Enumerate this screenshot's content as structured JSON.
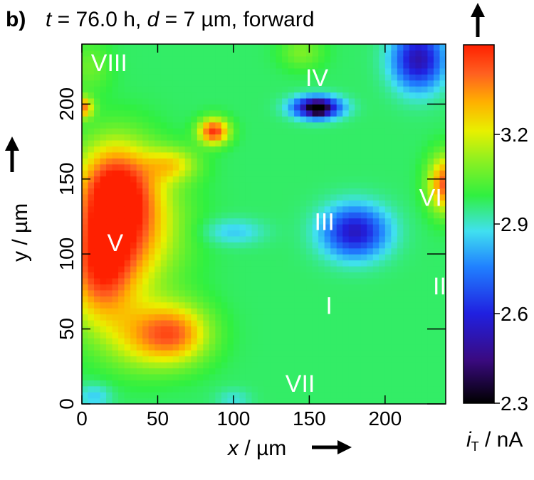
{
  "chart_data": {
    "type": "heatmap",
    "panel_label": "b)",
    "title": {
      "t_symbol": "t",
      "t_value": " = 76.0 h, ",
      "d_symbol": "d",
      "d_value": " = 7 µm, forward"
    },
    "xlabel": {
      "symbol": "x",
      "unit": " / µm"
    },
    "ylabel": "y / µm",
    "colorbar_label": {
      "symbol": "i",
      "subscript": "T",
      "unit": " / nA"
    },
    "x_range": [
      0,
      240
    ],
    "y_range": [
      0,
      240
    ],
    "x_ticks": [
      0,
      50,
      100,
      150,
      200
    ],
    "y_ticks": [
      0,
      50,
      100,
      150,
      200
    ],
    "color_range": [
      2.3,
      3.5
    ],
    "color_ticks": [
      "2.3",
      "2.6",
      "2.9",
      "3.2"
    ],
    "color_tick_values": [
      2.3,
      2.6,
      2.9,
      3.2
    ],
    "colormap": [
      "#000000",
      "#3a0a80",
      "#2020e0",
      "#2080ff",
      "#40e0f0",
      "#30f040",
      "#90f020",
      "#e8f000",
      "#ffb000",
      "#ff6020",
      "#ff2000"
    ],
    "colormap_stops": [
      0.0,
      0.12,
      0.25,
      0.38,
      0.48,
      0.58,
      0.68,
      0.76,
      0.84,
      0.92,
      1.0
    ],
    "background_value": 2.97,
    "features": [
      {
        "name": "V-upper",
        "x": 22,
        "y": 145,
        "sx": 18,
        "sy": 22,
        "amp": 0.45
      },
      {
        "name": "V-main",
        "x": 12,
        "y": 92,
        "sx": 16,
        "sy": 28,
        "amp": 0.45
      },
      {
        "name": "V-mid",
        "x": 35,
        "y": 115,
        "sx": 22,
        "sy": 28,
        "amp": 0.3
      },
      {
        "name": "lower-blob",
        "x": 62,
        "y": 47,
        "sx": 16,
        "sy": 14,
        "amp": 0.38
      },
      {
        "name": "lower-blob-left",
        "x": 38,
        "y": 45,
        "sx": 16,
        "sy": 16,
        "amp": 0.2
      },
      {
        "name": "bridge-1",
        "x": 60,
        "y": 160,
        "sx": 12,
        "sy": 8,
        "amp": 0.22
      },
      {
        "name": "top-spot",
        "x": 87,
        "y": 182,
        "sx": 7,
        "sy": 6,
        "amp": 0.5
      },
      {
        "name": "VI",
        "x": 240,
        "y": 147,
        "sx": 8,
        "sy": 13,
        "amp": 0.45
      },
      {
        "name": "VIII-edge",
        "x": 0,
        "y": 198,
        "sx": 5,
        "sy": 5,
        "amp": 0.4
      },
      {
        "name": "IV",
        "x": 155,
        "y": 198,
        "sx": 11,
        "sy": 5,
        "amp": -0.6
      },
      {
        "name": "IV-core",
        "x": 156,
        "y": 197,
        "sx": 4,
        "sy": 3,
        "amp": -0.3
      },
      {
        "name": "III",
        "x": 180,
        "y": 115,
        "sx": 15,
        "sy": 12,
        "amp": -0.42
      },
      {
        "name": "corner",
        "x": 222,
        "y": 230,
        "sx": 12,
        "sy": 14,
        "amp": -0.45
      },
      {
        "name": "mid-light",
        "x": 100,
        "y": 115,
        "sx": 14,
        "sy": 6,
        "amp": -0.12
      },
      {
        "name": "bottom-left-cyan",
        "x": 8,
        "y": 5,
        "sx": 8,
        "sy": 6,
        "amp": -0.12
      },
      {
        "name": "bottom-mid-cyan",
        "x": 100,
        "y": 3,
        "sx": 8,
        "sy": 5,
        "amp": -0.08
      },
      {
        "name": "top-yellow",
        "x": 145,
        "y": 235,
        "sx": 10,
        "sy": 8,
        "amp": 0.12
      },
      {
        "name": "left-top-yellow",
        "x": 5,
        "y": 225,
        "sx": 10,
        "sy": 12,
        "amp": 0.1
      }
    ],
    "region_labels": [
      {
        "text": "VIII",
        "x": 18,
        "y": 222
      },
      {
        "text": "IV",
        "x": 155,
        "y": 212
      },
      {
        "text": "VI",
        "x": 230,
        "y": 132
      },
      {
        "text": "III",
        "x": 160,
        "y": 116
      },
      {
        "text": "V",
        "x": 22,
        "y": 102
      },
      {
        "text": "II",
        "x": 236,
        "y": 73
      },
      {
        "text": "I",
        "x": 163,
        "y": 60
      },
      {
        "text": "VII",
        "x": 144,
        "y": 8
      }
    ]
  }
}
